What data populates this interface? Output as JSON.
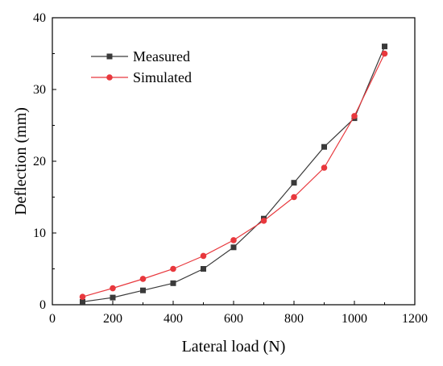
{
  "chart_data": {
    "type": "line",
    "xlabel": "Lateral load (N)",
    "ylabel": "Deflection (mm)",
    "xlim": [
      0,
      1200
    ],
    "ylim": [
      0,
      40
    ],
    "xticks": [
      0,
      200,
      400,
      600,
      800,
      1000,
      1200
    ],
    "yticks": [
      0,
      10,
      20,
      30,
      40
    ],
    "grid": false,
    "legend_position": "top-left",
    "series": [
      {
        "name": "Measured",
        "color": "#3a3a3a",
        "marker": "square",
        "x": [
          100,
          200,
          300,
          400,
          500,
          600,
          700,
          800,
          900,
          1000,
          1100
        ],
        "y": [
          0.4,
          1.0,
          2.0,
          3.0,
          5.0,
          8.0,
          12.0,
          17.0,
          22.0,
          26.0,
          36.0
        ]
      },
      {
        "name": "Simulated",
        "color": "#e8383d",
        "marker": "circle",
        "x": [
          100,
          200,
          300,
          400,
          500,
          600,
          700,
          800,
          900,
          1000,
          1100
        ],
        "y": [
          1.1,
          2.3,
          3.6,
          5.0,
          6.8,
          9.0,
          11.7,
          15.0,
          19.1,
          26.3,
          35.0
        ]
      }
    ]
  }
}
